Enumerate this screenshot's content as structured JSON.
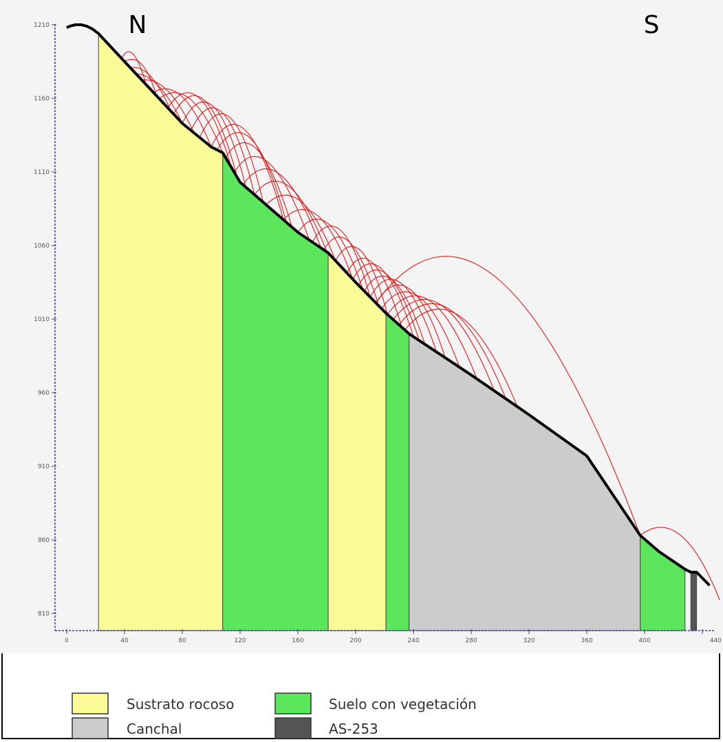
{
  "chart_data": {
    "type": "area",
    "title": "",
    "xlabel": "",
    "ylabel": "",
    "xlim": [
      0,
      440
    ],
    "ylim": [
      800,
      1210
    ],
    "x_ticks": [
      "0",
      "40",
      "80",
      "120",
      "160",
      "200",
      "240",
      "280",
      "320",
      "360",
      "400",
      "440"
    ],
    "y_ticks": [
      "810",
      "860",
      "910",
      "960",
      "1010",
      "1060",
      "1110",
      "1160",
      "1210"
    ],
    "direction_labels": {
      "left": "N",
      "right": "S"
    },
    "profile": [
      [
        0,
        1208
      ],
      [
        2,
        1209
      ],
      [
        6,
        1210
      ],
      [
        10,
        1210
      ],
      [
        14,
        1209
      ],
      [
        18,
        1207
      ],
      [
        22,
        1204
      ],
      [
        40,
        1185
      ],
      [
        60,
        1164
      ],
      [
        80,
        1143
      ],
      [
        100,
        1127
      ],
      [
        108,
        1123
      ],
      [
        120,
        1103
      ],
      [
        140,
        1086
      ],
      [
        160,
        1069
      ],
      [
        181,
        1055
      ],
      [
        200,
        1035
      ],
      [
        221,
        1014
      ],
      [
        237,
        1000
      ],
      [
        280,
        972
      ],
      [
        320,
        945
      ],
      [
        360,
        917
      ],
      [
        397,
        863
      ],
      [
        410,
        852
      ],
      [
        428,
        840
      ],
      [
        432,
        838
      ],
      [
        436,
        838
      ],
      [
        440,
        834
      ],
      [
        445,
        829
      ]
    ],
    "zones": [
      {
        "name": "Sustrato rocoso",
        "from": 22,
        "to": 108,
        "color": "#fafa96"
      },
      {
        "name": "Suelo con vegetación",
        "from": 108,
        "to": 181,
        "color": "#5ce65c"
      },
      {
        "name": "Sustrato rocoso",
        "from": 181,
        "to": 221,
        "color": "#fafa96"
      },
      {
        "name": "Suelo con vegetación",
        "from": 221,
        "to": 237,
        "color": "#5ce65c"
      },
      {
        "name": "Canchal",
        "from": 237,
        "to": 397,
        "color": "#cccccc"
      },
      {
        "name": "Suelo con vegetación",
        "from": 397,
        "to": 428,
        "color": "#5ce65c"
      },
      {
        "name": "AS-253",
        "from": 432,
        "to": 436,
        "color": "#555555"
      }
    ],
    "trajectories": [
      {
        "x": [
          38,
          46,
          55
        ],
        "apex": 1190
      },
      {
        "x": [
          40,
          52,
          62
        ],
        "apex": 1183
      },
      {
        "x": [
          44,
          58,
          72
        ],
        "apex": 1175
      },
      {
        "x": [
          48,
          64,
          80
        ],
        "apex": 1168
      },
      {
        "x": [
          52,
          70,
          88
        ],
        "apex": 1165
      },
      {
        "x": [
          60,
          80,
          100
        ],
        "apex": 1161
      },
      {
        "x": [
          64,
          86,
          108
        ],
        "apex": 1159
      },
      {
        "x": [
          70,
          92,
          114
        ],
        "apex": 1160
      },
      {
        "x": [
          74,
          96,
          118
        ],
        "apex": 1158
      },
      {
        "x": [
          80,
          102,
          124
        ],
        "apex": 1154
      },
      {
        "x": [
          86,
          108,
          130
        ],
        "apex": 1150
      },
      {
        "x": [
          92,
          114,
          136
        ],
        "apex": 1146
      },
      {
        "x": [
          100,
          124,
          150
        ],
        "apex": 1138
      },
      {
        "x": [
          104,
          128,
          152
        ],
        "apex": 1132
      },
      {
        "x": [
          110,
          132,
          156
        ],
        "apex": 1125
      },
      {
        "x": [
          116,
          140,
          168
        ],
        "apex": 1116
      },
      {
        "x": [
          122,
          148,
          176
        ],
        "apex": 1108
      },
      {
        "x": [
          130,
          154,
          180
        ],
        "apex": 1100
      },
      {
        "x": [
          138,
          162,
          186
        ],
        "apex": 1090
      },
      {
        "x": [
          150,
          174,
          198
        ],
        "apex": 1080
      },
      {
        "x": [
          160,
          182,
          205
        ],
        "apex": 1074
      },
      {
        "x": [
          170,
          190,
          210
        ],
        "apex": 1070
      },
      {
        "x": [
          178,
          196,
          216
        ],
        "apex": 1062
      },
      {
        "x": [
          186,
          204,
          222
        ],
        "apex": 1056
      },
      {
        "x": [
          194,
          212,
          232
        ],
        "apex": 1048
      },
      {
        "x": [
          198,
          218,
          240
        ],
        "apex": 1044
      },
      {
        "x": [
          202,
          222,
          244
        ],
        "apex": 1040
      },
      {
        "x": [
          206,
          226,
          248
        ],
        "apex": 1036
      },
      {
        "x": [
          210,
          232,
          256
        ],
        "apex": 1034
      },
      {
        "x": [
          214,
          238,
          262
        ],
        "apex": 1030
      },
      {
        "x": [
          218,
          244,
          272
        ],
        "apex": 1025
      },
      {
        "x": [
          222,
          252,
          284
        ],
        "apex": 1022
      },
      {
        "x": [
          226,
          260,
          296
        ],
        "apex": 1019
      },
      {
        "x": [
          230,
          266,
          304
        ],
        "apex": 1016
      },
      {
        "x": [
          234,
          272,
          312
        ],
        "apex": 1012
      },
      {
        "x": [
          214,
          300,
          397
        ],
        "apex": 1036
      },
      {
        "x": [
          397,
          425,
          452
        ],
        "apex": 863
      }
    ]
  },
  "legend": {
    "items": [
      {
        "label": "Sustrato rocoso",
        "color": "#fafa96"
      },
      {
        "label": "Suelo con vegetación",
        "color": "#5ce65c"
      },
      {
        "label": "Canchal",
        "color": "#cccccc"
      },
      {
        "label": "AS-253",
        "color": "#555555"
      }
    ]
  },
  "colors": {
    "profile_line": "#000000",
    "trajectory": "#e60000",
    "axis": "#3a3aa8"
  }
}
